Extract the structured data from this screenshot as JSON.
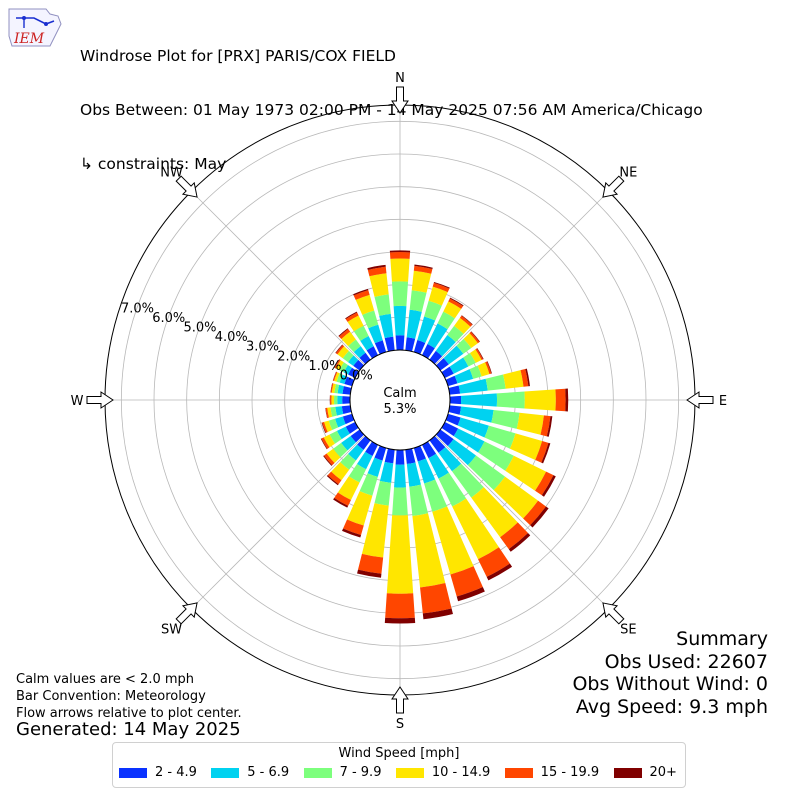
{
  "header": {
    "title": "Windrose Plot for [PRX] PARIS/COX FIELD",
    "obs_between": "Obs Between: 01 May 1973 02:00 PM - 14 May 2025 07:56 AM America/Chicago",
    "constraints": "↳ constraints: May"
  },
  "logo": {
    "text": "IEM",
    "color": "#cc2222"
  },
  "notes": {
    "calm_note": "Calm values are < 2.0 mph",
    "bar_convention": "Bar Convention: Meteorology",
    "flow_arrows": "Flow arrows relative to plot center.",
    "generated": "Generated: 14 May 2025"
  },
  "summary": {
    "heading": "Summary",
    "obs_used": "Obs Used: 22607",
    "obs_without_wind": "Obs Without Wind: 0",
    "avg_speed": "Avg Speed: 9.3 mph"
  },
  "legend": {
    "title": "Wind Speed [mph]",
    "bins": [
      {
        "label": "2 - 4.9",
        "color": "#0a32ff"
      },
      {
        "label": "5 - 6.9",
        "color": "#00d2f0"
      },
      {
        "label": "7 - 9.9",
        "color": "#7dff7d"
      },
      {
        "label": "10 - 14.9",
        "color": "#ffe600"
      },
      {
        "label": "15 - 19.9",
        "color": "#ff4600"
      },
      {
        "label": "20+",
        "color": "#800000"
      }
    ]
  },
  "chart_data": {
    "type": "windrose",
    "calm_label": "Calm",
    "calm_value": "5.3%",
    "calm_percent": 5.3,
    "radial_labels": [
      "0.0%",
      "1.0%",
      "2.0%",
      "3.0%",
      "4.0%",
      "5.0%",
      "6.0%",
      "7.0%"
    ],
    "rlim": [
      0,
      7.5
    ],
    "direction_labels": [
      {
        "label": "N",
        "angle": 0
      },
      {
        "label": "NE",
        "angle": 45
      },
      {
        "label": "E",
        "angle": 90
      },
      {
        "label": "SE",
        "angle": 135
      },
      {
        "label": "S",
        "angle": 180
      },
      {
        "label": "SW",
        "angle": 225
      },
      {
        "label": "W",
        "angle": 270
      },
      {
        "label": "NW",
        "angle": 315
      }
    ],
    "directions": [
      0,
      10,
      20,
      30,
      40,
      50,
      60,
      70,
      80,
      90,
      100,
      110,
      120,
      130,
      140,
      150,
      160,
      170,
      180,
      190,
      200,
      210,
      220,
      230,
      240,
      250,
      260,
      270,
      280,
      290,
      300,
      310,
      320,
      330,
      340,
      350
    ],
    "series": [
      {
        "name": "2 - 4.9",
        "values": [
          0.45,
          0.4,
          0.38,
          0.38,
          0.33,
          0.32,
          0.3,
          0.3,
          0.32,
          0.34,
          0.35,
          0.4,
          0.45,
          0.5,
          0.47,
          0.45,
          0.43,
          0.44,
          0.45,
          0.42,
          0.4,
          0.38,
          0.36,
          0.34,
          0.32,
          0.29,
          0.26,
          0.24,
          0.24,
          0.24,
          0.24,
          0.24,
          0.26,
          0.3,
          0.37,
          0.42
        ]
      },
      {
        "name": "5 - 6.9",
        "values": [
          0.9,
          0.85,
          0.75,
          0.7,
          0.6,
          0.55,
          0.5,
          0.5,
          0.85,
          1.1,
          1.0,
          0.9,
          0.9,
          0.85,
          0.7,
          0.7,
          0.7,
          0.7,
          0.7,
          0.6,
          0.52,
          0.45,
          0.4,
          0.36,
          0.3,
          0.25,
          0.2,
          0.15,
          0.15,
          0.15,
          0.15,
          0.2,
          0.25,
          0.35,
          0.5,
          0.7
        ]
      },
      {
        "name": "7 - 9.9",
        "values": [
          0.75,
          0.6,
          0.5,
          0.4,
          0.35,
          0.3,
          0.25,
          0.27,
          0.55,
          0.85,
          0.8,
          0.85,
          1.0,
          1.1,
          1.0,
          0.95,
          0.9,
          0.9,
          0.85,
          0.7,
          0.6,
          0.45,
          0.35,
          0.3,
          0.25,
          0.2,
          0.15,
          0.1,
          0.1,
          0.1,
          0.15,
          0.2,
          0.25,
          0.35,
          0.45,
          0.6
        ]
      },
      {
        "name": "10 - 14.9",
        "values": [
          0.7,
          0.6,
          0.45,
          0.35,
          0.3,
          0.25,
          0.2,
          0.25,
          0.55,
          0.95,
          0.75,
          0.85,
          1.1,
          1.25,
          1.5,
          1.8,
          2.0,
          2.2,
          2.4,
          1.6,
          0.95,
          0.6,
          0.4,
          0.25,
          0.2,
          0.15,
          0.1,
          0.08,
          0.08,
          0.08,
          0.12,
          0.2,
          0.3,
          0.35,
          0.5,
          0.65
        ]
      },
      {
        "name": "15 - 19.9",
        "values": [
          0.2,
          0.15,
          0.12,
          0.1,
          0.08,
          0.06,
          0.05,
          0.06,
          0.15,
          0.3,
          0.2,
          0.2,
          0.25,
          0.3,
          0.45,
          0.6,
          0.7,
          0.8,
          0.75,
          0.5,
          0.3,
          0.2,
          0.15,
          0.1,
          0.08,
          0.06,
          0.05,
          0.04,
          0.03,
          0.03,
          0.04,
          0.06,
          0.1,
          0.1,
          0.15,
          0.2
        ]
      },
      {
        "name": "20+",
        "values": [
          0.05,
          0.04,
          0.03,
          0.03,
          0.02,
          0.02,
          0.02,
          0.02,
          0.05,
          0.08,
          0.06,
          0.06,
          0.08,
          0.1,
          0.1,
          0.12,
          0.15,
          0.18,
          0.16,
          0.12,
          0.08,
          0.06,
          0.04,
          0.03,
          0.02,
          0.02,
          0.01,
          0.01,
          0.01,
          0.01,
          0.01,
          0.02,
          0.03,
          0.03,
          0.04,
          0.06
        ]
      }
    ]
  }
}
